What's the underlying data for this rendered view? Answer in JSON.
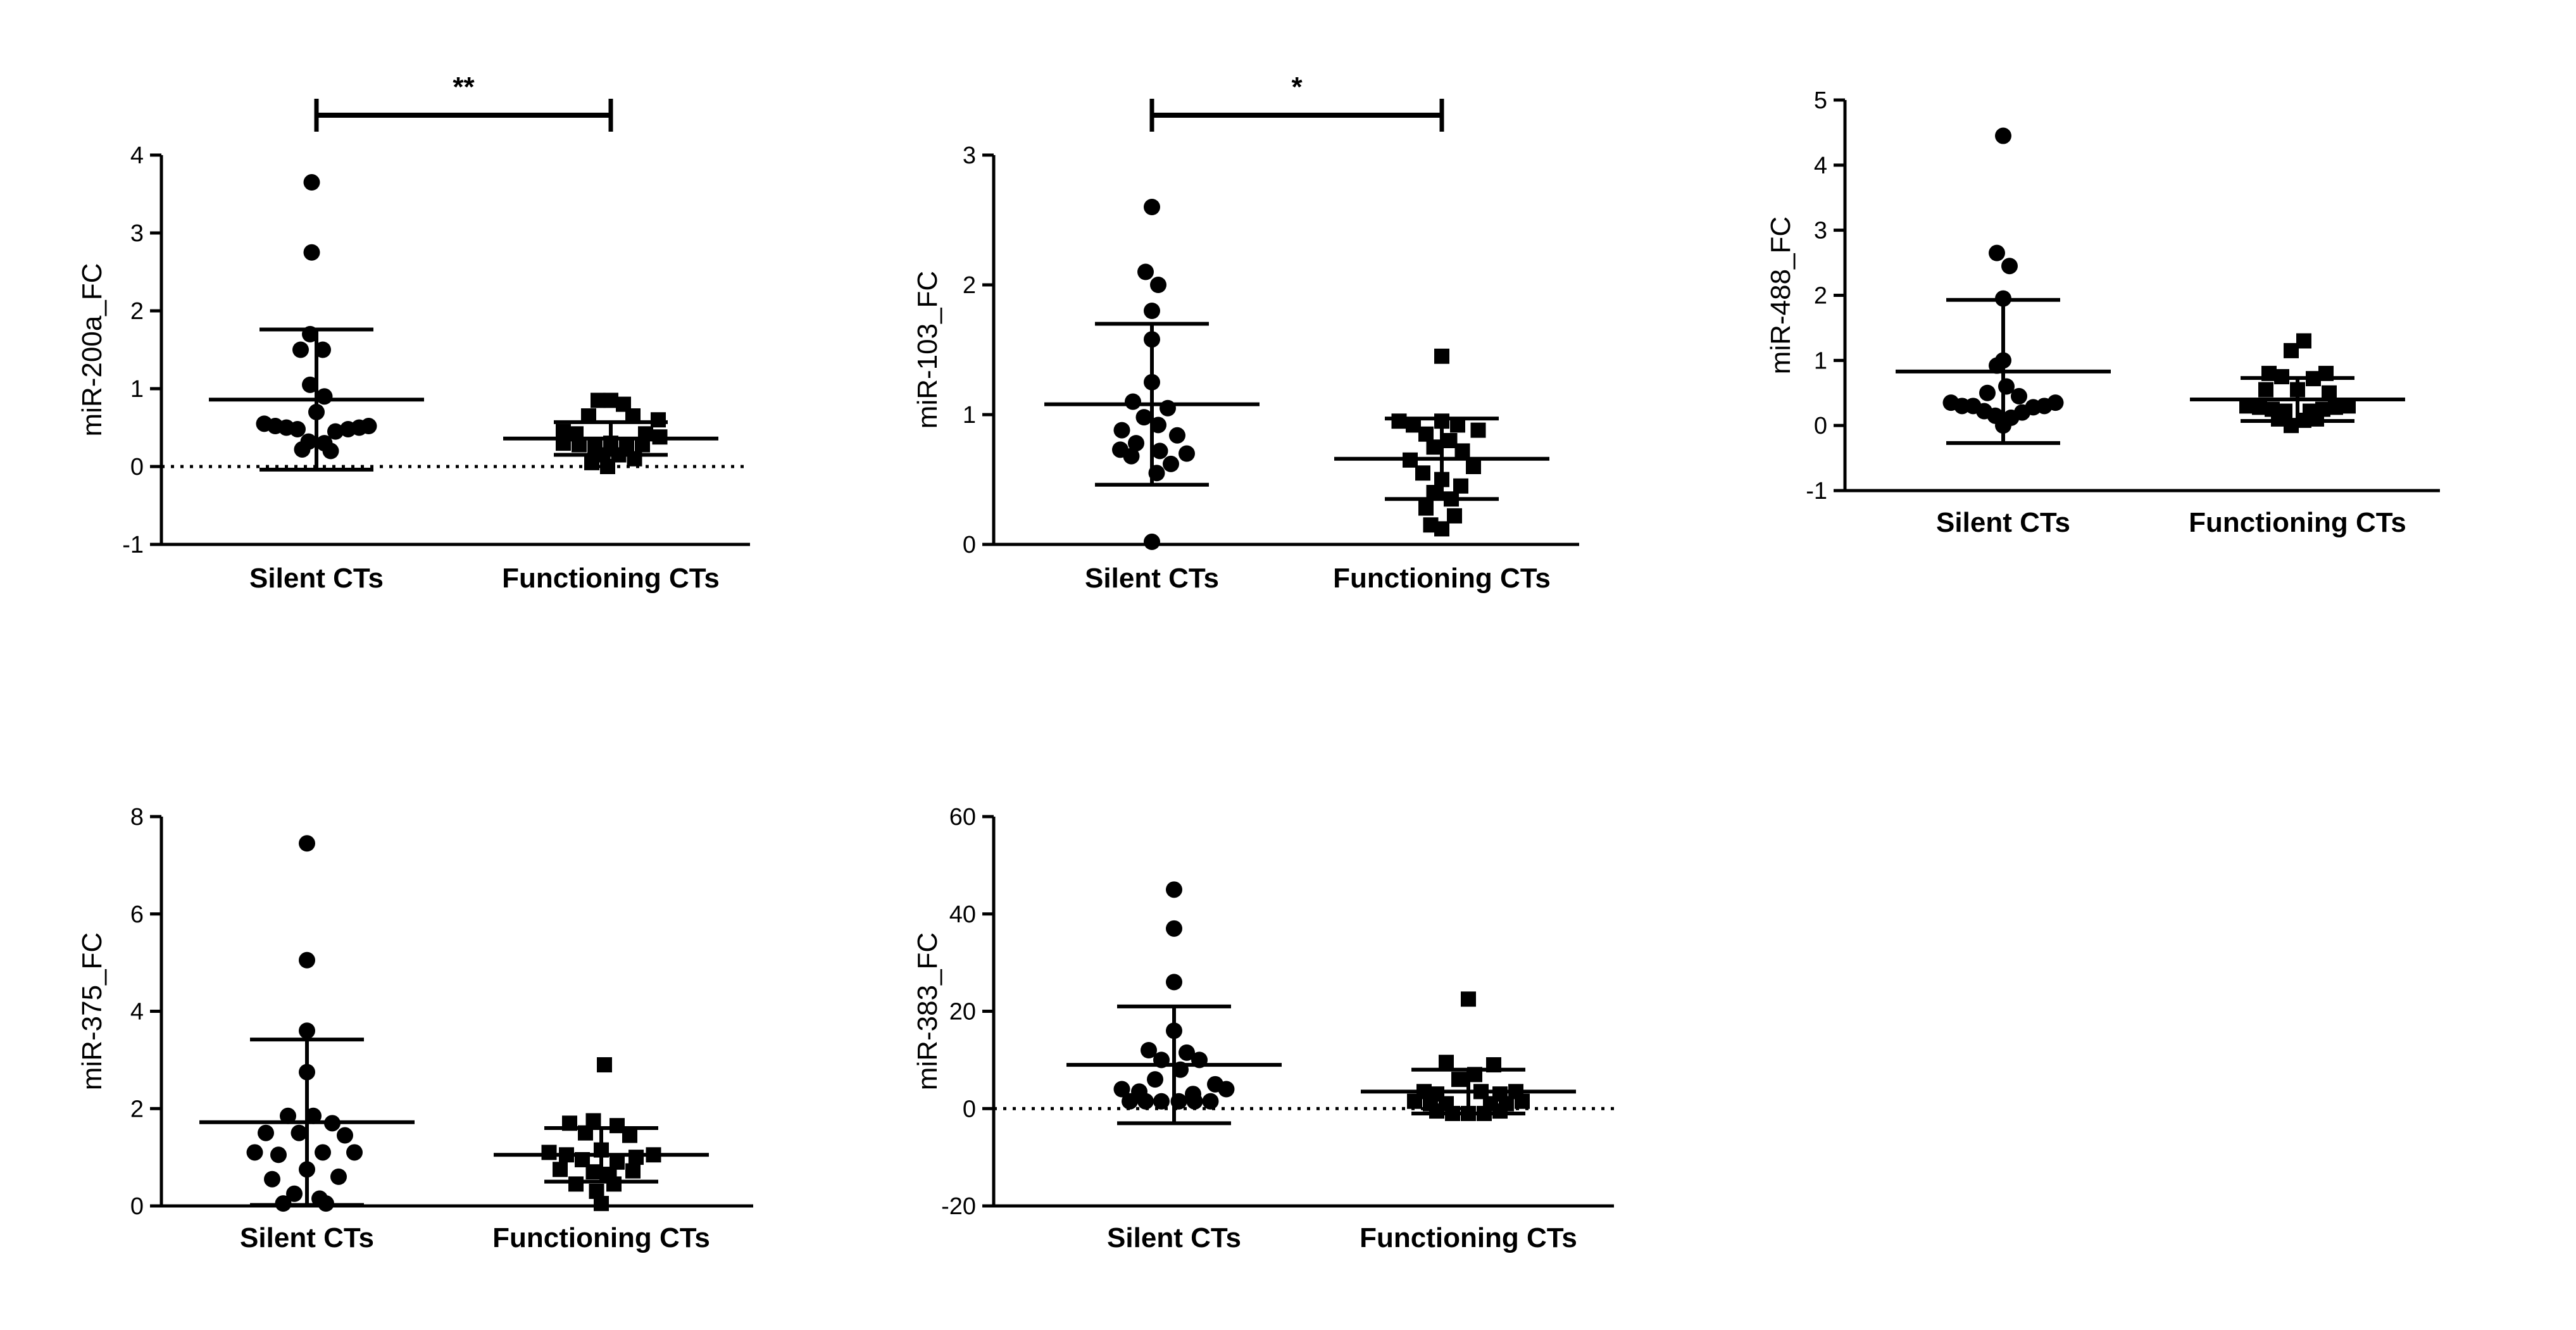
{
  "figure": {
    "background": "#ffffff",
    "mark_color": "#000000"
  },
  "chart_data": [
    {
      "id": "mir-200a",
      "type": "scatter",
      "ylabel": "miR-200a_FC",
      "yticks": [
        "-1",
        "0",
        "1",
        "2",
        "3",
        "4"
      ],
      "ylim": [
        -1,
        4
      ],
      "zero_line": true,
      "significance": "**",
      "groups": [
        {
          "name": "Silent CTs",
          "marker": "circle",
          "mean": 0.86,
          "sd": 0.9,
          "points": [
            {
              "x": -0.03,
              "y": 3.65
            },
            {
              "x": -0.03,
              "y": 2.75
            },
            {
              "x": -0.04,
              "y": 1.7
            },
            {
              "x": 0.04,
              "y": 1.5
            },
            {
              "x": -0.1,
              "y": 1.5
            },
            {
              "x": -0.04,
              "y": 1.05
            },
            {
              "x": 0.05,
              "y": 0.9
            },
            {
              "x": 0.0,
              "y": 0.7
            },
            {
              "x": -0.33,
              "y": 0.55
            },
            {
              "x": -0.26,
              "y": 0.52
            },
            {
              "x": -0.19,
              "y": 0.5
            },
            {
              "x": -0.12,
              "y": 0.48
            },
            {
              "x": 0.12,
              "y": 0.45
            },
            {
              "x": 0.2,
              "y": 0.48
            },
            {
              "x": 0.27,
              "y": 0.5
            },
            {
              "x": 0.33,
              "y": 0.52
            },
            {
              "x": -0.05,
              "y": 0.32
            },
            {
              "x": 0.05,
              "y": 0.3
            },
            {
              "x": -0.09,
              "y": 0.22
            },
            {
              "x": 0.09,
              "y": 0.2
            }
          ]
        },
        {
          "name": "Functioning CTs",
          "marker": "square",
          "mean": 0.36,
          "sd": 0.21,
          "points": [
            {
              "x": -0.08,
              "y": 0.85
            },
            {
              "x": 0.0,
              "y": 0.85
            },
            {
              "x": 0.08,
              "y": 0.8
            },
            {
              "x": -0.14,
              "y": 0.65
            },
            {
              "x": 0.14,
              "y": 0.65
            },
            {
              "x": 0.3,
              "y": 0.6
            },
            {
              "x": -0.3,
              "y": 0.45
            },
            {
              "x": -0.22,
              "y": 0.42
            },
            {
              "x": 0.22,
              "y": 0.42
            },
            {
              "x": 0.31,
              "y": 0.38
            },
            {
              "x": -0.3,
              "y": 0.3
            },
            {
              "x": -0.2,
              "y": 0.28
            },
            {
              "x": -0.1,
              "y": 0.25
            },
            {
              "x": 0.0,
              "y": 0.3
            },
            {
              "x": 0.1,
              "y": 0.25
            },
            {
              "x": 0.2,
              "y": 0.28
            },
            {
              "x": -0.05,
              "y": 0.15
            },
            {
              "x": 0.05,
              "y": 0.15
            },
            {
              "x": 0.15,
              "y": 0.1
            },
            {
              "x": -0.12,
              "y": 0.05
            },
            {
              "x": -0.02,
              "y": 0.0
            }
          ]
        }
      ]
    },
    {
      "id": "mir-103",
      "type": "scatter",
      "ylabel": "miR-103_FC",
      "yticks": [
        "0",
        "1",
        "2",
        "3"
      ],
      "ylim": [
        0,
        3
      ],
      "zero_line": false,
      "significance": "*",
      "groups": [
        {
          "name": "Silent CTs",
          "marker": "circle",
          "mean": 1.08,
          "sd": 0.62,
          "points": [
            {
              "x": 0.0,
              "y": 2.6
            },
            {
              "x": -0.04,
              "y": 2.1
            },
            {
              "x": 0.04,
              "y": 2.0
            },
            {
              "x": 0.0,
              "y": 1.8
            },
            {
              "x": 0.0,
              "y": 1.58
            },
            {
              "x": 0.0,
              "y": 1.25
            },
            {
              "x": -0.12,
              "y": 1.1
            },
            {
              "x": 0.1,
              "y": 1.05
            },
            {
              "x": -0.05,
              "y": 0.98
            },
            {
              "x": 0.04,
              "y": 0.92
            },
            {
              "x": -0.19,
              "y": 0.88
            },
            {
              "x": 0.16,
              "y": 0.84
            },
            {
              "x": -0.1,
              "y": 0.78
            },
            {
              "x": -0.2,
              "y": 0.73
            },
            {
              "x": -0.13,
              "y": 0.68
            },
            {
              "x": 0.05,
              "y": 0.72
            },
            {
              "x": 0.22,
              "y": 0.7
            },
            {
              "x": 0.12,
              "y": 0.62
            },
            {
              "x": 0.03,
              "y": 0.55
            },
            {
              "x": 0.0,
              "y": 0.02
            }
          ]
        },
        {
          "name": "Functioning CTs",
          "marker": "square",
          "mean": 0.66,
          "sd": 0.31,
          "points": [
            {
              "x": 0.0,
              "y": 1.45
            },
            {
              "x": -0.27,
              "y": 0.95
            },
            {
              "x": -0.18,
              "y": 0.92
            },
            {
              "x": 0.0,
              "y": 0.95
            },
            {
              "x": 0.1,
              "y": 0.92
            },
            {
              "x": 0.23,
              "y": 0.88
            },
            {
              "x": -0.1,
              "y": 0.85
            },
            {
              "x": 0.05,
              "y": 0.8
            },
            {
              "x": -0.05,
              "y": 0.75
            },
            {
              "x": 0.13,
              "y": 0.72
            },
            {
              "x": -0.2,
              "y": 0.65
            },
            {
              "x": 0.2,
              "y": 0.6
            },
            {
              "x": -0.12,
              "y": 0.55
            },
            {
              "x": 0.0,
              "y": 0.5
            },
            {
              "x": 0.12,
              "y": 0.45
            },
            {
              "x": -0.05,
              "y": 0.4
            },
            {
              "x": 0.06,
              "y": 0.35
            },
            {
              "x": -0.1,
              "y": 0.28
            },
            {
              "x": 0.08,
              "y": 0.22
            },
            {
              "x": -0.07,
              "y": 0.15
            },
            {
              "x": 0.0,
              "y": 0.12
            }
          ]
        }
      ]
    },
    {
      "id": "mir-488",
      "type": "scatter",
      "ylabel": "miR-488_FC",
      "yticks": [
        "-1",
        "0",
        "1",
        "2",
        "3",
        "4",
        "5"
      ],
      "ylim": [
        -1,
        5
      ],
      "zero_line": false,
      "significance": "",
      "groups": [
        {
          "name": "Silent CTs",
          "marker": "circle",
          "mean": 0.83,
          "sd": 1.1,
          "points": [
            {
              "x": 0.0,
              "y": 4.45
            },
            {
              "x": -0.04,
              "y": 2.65
            },
            {
              "x": 0.04,
              "y": 2.45
            },
            {
              "x": 0.0,
              "y": 1.95
            },
            {
              "x": 0.0,
              "y": 1.0
            },
            {
              "x": -0.04,
              "y": 0.92
            },
            {
              "x": 0.02,
              "y": 0.6
            },
            {
              "x": -0.1,
              "y": 0.5
            },
            {
              "x": 0.1,
              "y": 0.45
            },
            {
              "x": -0.33,
              "y": 0.35
            },
            {
              "x": -0.26,
              "y": 0.3
            },
            {
              "x": -0.19,
              "y": 0.3
            },
            {
              "x": 0.33,
              "y": 0.35
            },
            {
              "x": 0.26,
              "y": 0.3
            },
            {
              "x": 0.19,
              "y": 0.28
            },
            {
              "x": -0.12,
              "y": 0.22
            },
            {
              "x": 0.12,
              "y": 0.2
            },
            {
              "x": -0.05,
              "y": 0.15
            },
            {
              "x": 0.05,
              "y": 0.12
            },
            {
              "x": 0.0,
              "y": 0.0
            }
          ]
        },
        {
          "name": "Functioning CTs",
          "marker": "square",
          "mean": 0.4,
          "sd": 0.33,
          "points": [
            {
              "x": 0.04,
              "y": 1.3
            },
            {
              "x": -0.04,
              "y": 1.15
            },
            {
              "x": -0.18,
              "y": 0.8
            },
            {
              "x": 0.18,
              "y": 0.8
            },
            {
              "x": -0.1,
              "y": 0.75
            },
            {
              "x": 0.1,
              "y": 0.72
            },
            {
              "x": -0.2,
              "y": 0.55
            },
            {
              "x": 0.0,
              "y": 0.55
            },
            {
              "x": 0.2,
              "y": 0.5
            },
            {
              "x": -0.32,
              "y": 0.3
            },
            {
              "x": -0.24,
              "y": 0.28
            },
            {
              "x": -0.16,
              "y": 0.25
            },
            {
              "x": -0.08,
              "y": 0.22
            },
            {
              "x": 0.08,
              "y": 0.22
            },
            {
              "x": 0.16,
              "y": 0.25
            },
            {
              "x": 0.24,
              "y": 0.28
            },
            {
              "x": 0.32,
              "y": 0.3
            },
            {
              "x": -0.12,
              "y": 0.1
            },
            {
              "x": 0.04,
              "y": 0.08
            },
            {
              "x": 0.12,
              "y": 0.1
            },
            {
              "x": -0.04,
              "y": 0.0
            }
          ]
        }
      ]
    },
    {
      "id": "mir-375",
      "type": "scatter",
      "ylabel": "miR-375_FC",
      "yticks": [
        "0",
        "2",
        "4",
        "6",
        "8"
      ],
      "ylim": [
        0,
        8
      ],
      "zero_line": false,
      "significance": "",
      "groups": [
        {
          "name": "Silent CTs",
          "marker": "circle",
          "mean": 1.72,
          "sd": 1.7,
          "points": [
            {
              "x": 0.0,
              "y": 7.45
            },
            {
              "x": 0.0,
              "y": 5.05
            },
            {
              "x": 0.0,
              "y": 3.6
            },
            {
              "x": 0.0,
              "y": 2.75
            },
            {
              "x": -0.12,
              "y": 1.85
            },
            {
              "x": 0.04,
              "y": 1.85
            },
            {
              "x": 0.16,
              "y": 1.7
            },
            {
              "x": -0.26,
              "y": 1.5
            },
            {
              "x": -0.05,
              "y": 1.5
            },
            {
              "x": 0.24,
              "y": 1.45
            },
            {
              "x": -0.33,
              "y": 1.1
            },
            {
              "x": -0.18,
              "y": 1.05
            },
            {
              "x": 0.1,
              "y": 1.1
            },
            {
              "x": 0.3,
              "y": 1.1
            },
            {
              "x": 0.0,
              "y": 0.75
            },
            {
              "x": -0.22,
              "y": 0.55
            },
            {
              "x": 0.2,
              "y": 0.6
            },
            {
              "x": -0.08,
              "y": 0.25
            },
            {
              "x": 0.08,
              "y": 0.15
            },
            {
              "x": -0.15,
              "y": 0.05
            },
            {
              "x": 0.12,
              "y": 0.05
            }
          ]
        },
        {
          "name": "Functioning CTs",
          "marker": "square",
          "mean": 1.05,
          "sd": 0.55,
          "points": [
            {
              "x": 0.02,
              "y": 2.9
            },
            {
              "x": -0.2,
              "y": 1.7
            },
            {
              "x": -0.05,
              "y": 1.75
            },
            {
              "x": 0.1,
              "y": 1.65
            },
            {
              "x": -0.1,
              "y": 1.5
            },
            {
              "x": 0.18,
              "y": 1.45
            },
            {
              "x": -0.33,
              "y": 1.1
            },
            {
              "x": -0.22,
              "y": 1.05
            },
            {
              "x": 0.0,
              "y": 1.15
            },
            {
              "x": 0.22,
              "y": 1.0
            },
            {
              "x": 0.33,
              "y": 1.05
            },
            {
              "x": -0.12,
              "y": 0.95
            },
            {
              "x": 0.1,
              "y": 0.9
            },
            {
              "x": -0.26,
              "y": 0.75
            },
            {
              "x": -0.05,
              "y": 0.7
            },
            {
              "x": 0.05,
              "y": 0.65
            },
            {
              "x": 0.2,
              "y": 0.72
            },
            {
              "x": -0.16,
              "y": 0.45
            },
            {
              "x": 0.08,
              "y": 0.45
            },
            {
              "x": -0.03,
              "y": 0.3
            },
            {
              "x": 0.0,
              "y": 0.05
            }
          ]
        }
      ]
    },
    {
      "id": "mir-383",
      "type": "scatter",
      "ylabel": "miR-383_FC",
      "yticks": [
        "-20",
        "0",
        "20",
        "40",
        "60"
      ],
      "ylim": [
        -20,
        60
      ],
      "zero_line": true,
      "significance": "",
      "groups": [
        {
          "name": "Silent CTs",
          "marker": "circle",
          "mean": 9.0,
          "sd": 12.0,
          "points": [
            {
              "x": 0.0,
              "y": 45
            },
            {
              "x": 0.0,
              "y": 37
            },
            {
              "x": 0.0,
              "y": 26
            },
            {
              "x": 0.0,
              "y": 16
            },
            {
              "x": -0.16,
              "y": 12
            },
            {
              "x": 0.08,
              "y": 11.5
            },
            {
              "x": -0.08,
              "y": 10
            },
            {
              "x": 0.16,
              "y": 10
            },
            {
              "x": 0.04,
              "y": 8
            },
            {
              "x": -0.12,
              "y": 6
            },
            {
              "x": 0.26,
              "y": 5
            },
            {
              "x": -0.33,
              "y": 4
            },
            {
              "x": -0.22,
              "y": 3.5
            },
            {
              "x": 0.33,
              "y": 4
            },
            {
              "x": 0.12,
              "y": 3
            },
            {
              "x": -0.28,
              "y": 1.5
            },
            {
              "x": -0.18,
              "y": 1.5
            },
            {
              "x": -0.08,
              "y": 1.5
            },
            {
              "x": 0.03,
              "y": 1.5
            },
            {
              "x": 0.13,
              "y": 1.5
            },
            {
              "x": 0.23,
              "y": 1.5
            }
          ]
        },
        {
          "name": "Functioning CTs",
          "marker": "square",
          "mean": 3.5,
          "sd": 4.5,
          "points": [
            {
              "x": 0.0,
              "y": 22.5
            },
            {
              "x": -0.14,
              "y": 9.5
            },
            {
              "x": 0.16,
              "y": 9
            },
            {
              "x": 0.04,
              "y": 7
            },
            {
              "x": -0.06,
              "y": 6
            },
            {
              "x": -0.28,
              "y": 3.5
            },
            {
              "x": -0.2,
              "y": 3
            },
            {
              "x": 0.08,
              "y": 3.5
            },
            {
              "x": 0.2,
              "y": 3
            },
            {
              "x": 0.3,
              "y": 3.5
            },
            {
              "x": -0.34,
              "y": 1.5
            },
            {
              "x": -0.24,
              "y": 1
            },
            {
              "x": -0.14,
              "y": 1
            },
            {
              "x": 0.14,
              "y": 1
            },
            {
              "x": 0.24,
              "y": 1
            },
            {
              "x": 0.34,
              "y": 1.5
            },
            {
              "x": -0.2,
              "y": -0.5
            },
            {
              "x": -0.1,
              "y": -1
            },
            {
              "x": 0.0,
              "y": -1
            },
            {
              "x": 0.1,
              "y": -1
            },
            {
              "x": 0.2,
              "y": -0.5
            }
          ]
        }
      ]
    }
  ]
}
